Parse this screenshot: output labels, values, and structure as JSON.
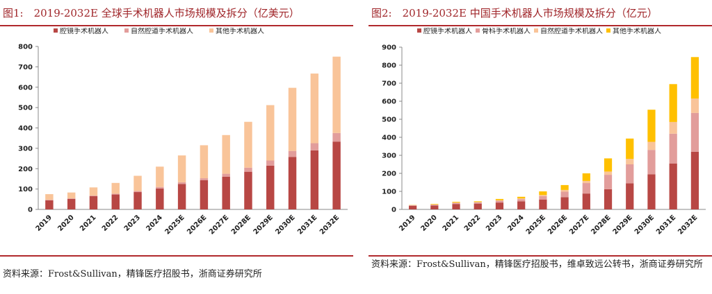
{
  "chart_data": [
    {
      "type": "bar",
      "stacked": true,
      "title": "图1:　2019-2032E 全球手术机器人市场规模及拆分（亿美元）",
      "source": "资料来源：Frost&Sullivan，精锋医疗招股书，浙商证券研究所",
      "categories": [
        "2019",
        "2020",
        "2021",
        "2022",
        "2023",
        "2024",
        "2025E",
        "2026E",
        "2027E",
        "2028E",
        "2029E",
        "2030E",
        "2031E",
        "2032E"
      ],
      "series": [
        {
          "name": "腔镜手术机器人",
          "color": "#b84744",
          "values": [
            45,
            52,
            65,
            73,
            85,
            103,
            125,
            143,
            160,
            185,
            215,
            257,
            290,
            333
          ]
        },
        {
          "name": "自然腔道手术机器人",
          "color": "#e29d9b",
          "values": [
            2,
            2,
            3,
            4,
            5,
            7,
            8,
            10,
            15,
            20,
            25,
            30,
            35,
            42
          ]
        },
        {
          "name": "其他手术机器人",
          "color": "#f9c499",
          "values": [
            28,
            29,
            40,
            53,
            75,
            100,
            132,
            162,
            190,
            225,
            272,
            310,
            342,
            375
          ]
        }
      ],
      "ylim": [
        0,
        800
      ],
      "yticks": [
        0,
        100,
        200,
        300,
        400,
        500,
        600,
        700,
        800
      ]
    },
    {
      "type": "bar",
      "stacked": true,
      "title": "图2:　2019-2032E 中国手术机器人市场规模及拆分（亿元）",
      "source": "资料来源：Frost&Sullivan，精锋医疗招股书，维卓致远公转书，浙商证券研究所",
      "categories": [
        "2019",
        "2020",
        "2021",
        "2022",
        "2023",
        "2024",
        "2025E",
        "2026E",
        "2027E",
        "2028E",
        "2029E",
        "2030E",
        "2031E",
        "2032E"
      ],
      "series": [
        {
          "name": "腔镜手术机器人",
          "color": "#b84744",
          "values": [
            20,
            22,
            30,
            32,
            38,
            45,
            55,
            68,
            88,
            112,
            145,
            195,
            255,
            320
          ]
        },
        {
          "name": "骨科手术机器人",
          "color": "#e29d9b",
          "values": [
            3,
            4,
            6,
            7,
            10,
            12,
            18,
            30,
            58,
            80,
            105,
            135,
            165,
            215
          ]
        },
        {
          "name": "自然腔道手术机器人",
          "color": "#f9c499",
          "values": [
            1,
            1,
            2,
            2,
            3,
            4,
            7,
            10,
            12,
            18,
            30,
            45,
            65,
            80
          ]
        },
        {
          "name": "其他手术机器人",
          "color": "#ffc000",
          "values": [
            1,
            3,
            4,
            4,
            7,
            9,
            20,
            27,
            42,
            73,
            113,
            178,
            210,
            230
          ]
        }
      ],
      "ylim": [
        0,
        900
      ],
      "yticks": [
        0,
        100,
        200,
        300,
        400,
        500,
        600,
        700,
        800,
        900
      ]
    }
  ]
}
